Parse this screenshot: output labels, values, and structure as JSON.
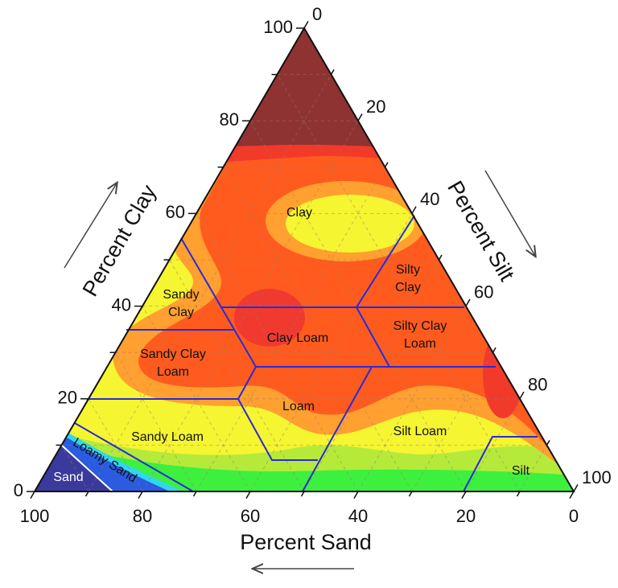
{
  "chart_data": {
    "type": "ternary",
    "axes": {
      "clay": {
        "title": "Percent Clay",
        "ticks": [
          0,
          20,
          40,
          60,
          80,
          100
        ]
      },
      "silt": {
        "title": "Percent Silt",
        "ticks": [
          0,
          20,
          40,
          60,
          80,
          100
        ]
      },
      "sand": {
        "title": "Percent Sand",
        "ticks": [
          0,
          20,
          40,
          60,
          80,
          100
        ]
      }
    },
    "minor_ticks": [
      10,
      30,
      50,
      70,
      90
    ],
    "grid": true,
    "regions": [
      [
        "Clay"
      ],
      [
        "Silty",
        "Clay"
      ],
      [
        "Sandy",
        "Clay"
      ],
      [
        "Clay Loam"
      ],
      [
        "Silty Clay",
        "Loam"
      ],
      [
        "Sandy Clay",
        "Loam"
      ],
      [
        "Loam"
      ],
      [
        "Silt Loam"
      ],
      [
        "Sandy Loam"
      ],
      [
        "Silt"
      ],
      [
        "Loamy Sand"
      ],
      [
        "Sand"
      ]
    ]
  }
}
